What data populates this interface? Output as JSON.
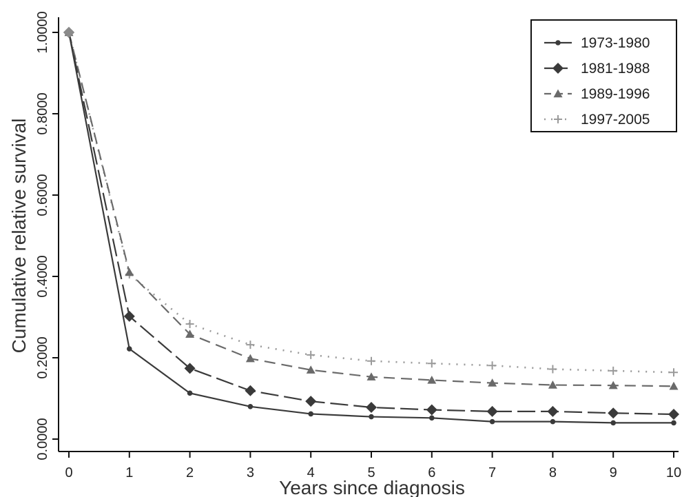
{
  "chart_data": {
    "type": "line",
    "title": "",
    "xlabel": "Years since diagnosis",
    "ylabel": "Cumulative relative survival",
    "x": [
      0,
      1,
      2,
      3,
      4,
      5,
      6,
      7,
      8,
      9,
      10
    ],
    "xlim": [
      0,
      10
    ],
    "ylim": [
      0,
      1
    ],
    "x_ticks": [
      "0",
      "1",
      "2",
      "3",
      "4",
      "5",
      "6",
      "7",
      "8",
      "9",
      "10"
    ],
    "y_ticks": [
      "0.0000",
      "0.2000",
      "0.4000",
      "0.6000",
      "0.8000",
      "1.0000"
    ],
    "y_tick_values": [
      0,
      0.2,
      0.4,
      0.6,
      0.8,
      1.0
    ],
    "grid": false,
    "legend_position": "top-right",
    "series": [
      {
        "name": "1973-1980",
        "values": [
          1.0,
          0.222,
          0.113,
          0.08,
          0.062,
          0.055,
          0.052,
          0.043,
          0.043,
          0.04,
          0.04
        ],
        "color": "#3a3a3a",
        "line_style": "solid",
        "marker": "dot"
      },
      {
        "name": "1981-1988",
        "values": [
          1.0,
          0.302,
          0.174,
          0.119,
          0.093,
          0.078,
          0.072,
          0.068,
          0.068,
          0.064,
          0.061
        ],
        "color": "#3a3a3a",
        "line_style": "long-dash",
        "marker": "diamond"
      },
      {
        "name": "1989-1996",
        "values": [
          1.0,
          0.41,
          0.258,
          0.198,
          0.17,
          0.153,
          0.145,
          0.138,
          0.133,
          0.132,
          0.13
        ],
        "color": "#6a6a6a",
        "line_style": "dash",
        "marker": "triangle"
      },
      {
        "name": "1997-2005",
        "values": [
          1.0,
          0.405,
          0.283,
          0.232,
          0.207,
          0.192,
          0.186,
          0.181,
          0.172,
          0.168,
          0.164
        ],
        "color": "#9a9a9a",
        "line_style": "dotted",
        "marker": "plus"
      }
    ]
  }
}
